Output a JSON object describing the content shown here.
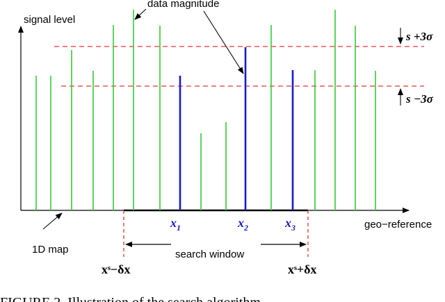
{
  "labels": {
    "y_axis": "signal level",
    "x_axis": "geo−reference",
    "data_magnitude": "data magnitude",
    "map": "1D map",
    "search_window": "search window",
    "upper_threshold": "s +3σ",
    "lower_threshold": "s −3σ",
    "window_left": "xˢ−δx",
    "window_right": "xˢ+δx",
    "caption": "FIGURE 2. Illustration of the search algorithm..."
  },
  "measurements": [
    {
      "name": "x",
      "subscript": "1",
      "color": "#1a1acc"
    },
    {
      "name": "x",
      "subscript": "2",
      "color": "#1a1acc"
    },
    {
      "name": "x",
      "subscript": "3",
      "color": "#1a1acc"
    }
  ],
  "colors": {
    "map_bars": "#33cc33",
    "data_bars": "#1a1acc",
    "threshold": "#e53333",
    "axis": "#000000"
  }
}
